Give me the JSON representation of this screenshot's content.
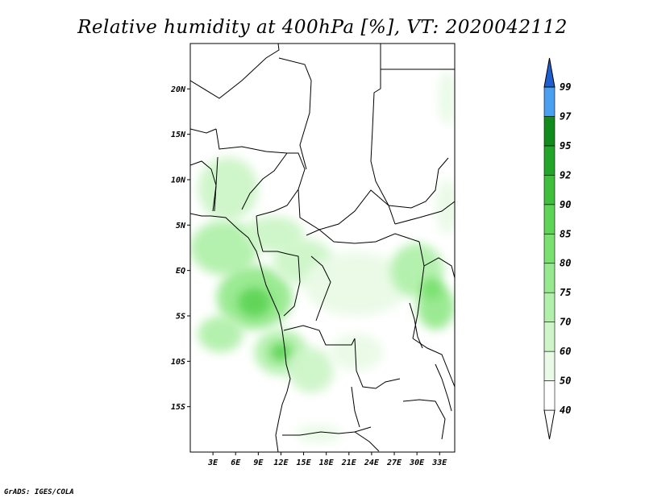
{
  "title": "Relative humidity at 400hPa [%], VT: 2020042112",
  "credit": "GrADS: IGES/COLA",
  "map": {
    "lon_range": [
      0,
      35
    ],
    "lat_range": [
      -20,
      25
    ],
    "lat_ticks": [
      {
        "value": 20,
        "label": "20N"
      },
      {
        "value": 15,
        "label": "15N"
      },
      {
        "value": 10,
        "label": "10N"
      },
      {
        "value": 5,
        "label": "5N"
      },
      {
        "value": 0,
        "label": "EQ"
      },
      {
        "value": -5,
        "label": "5S"
      },
      {
        "value": -10,
        "label": "10S"
      },
      {
        "value": -15,
        "label": "15S"
      }
    ],
    "lon_ticks": [
      {
        "value": 3,
        "label": "3E"
      },
      {
        "value": 6,
        "label": "6E"
      },
      {
        "value": 9,
        "label": "9E"
      },
      {
        "value": 12,
        "label": "12E"
      },
      {
        "value": 15,
        "label": "15E"
      },
      {
        "value": 18,
        "label": "18E"
      },
      {
        "value": 21,
        "label": "21E"
      },
      {
        "value": 24,
        "label": "24E"
      },
      {
        "value": 27,
        "label": "27E"
      },
      {
        "value": 30,
        "label": "30E"
      },
      {
        "value": 33,
        "label": "33E"
      }
    ]
  },
  "colorbar": {
    "levels": [
      {
        "label": "40",
        "color": "#ffffff"
      },
      {
        "label": "50",
        "color": "#e9fae6"
      },
      {
        "label": "60",
        "color": "#cdf5c8"
      },
      {
        "label": "70",
        "color": "#b1f0aa"
      },
      {
        "label": "75",
        "color": "#96e98e"
      },
      {
        "label": "80",
        "color": "#7ae070"
      },
      {
        "label": "85",
        "color": "#5fd456"
      },
      {
        "label": "90",
        "color": "#3fbf3b"
      },
      {
        "label": "92",
        "color": "#23a52a"
      },
      {
        "label": "95",
        "color": "#118c1c"
      },
      {
        "label": "97",
        "color": "#4c9ff0"
      },
      {
        "label": "99",
        "color": "#2a78e0"
      }
    ],
    "top_color": "#1e5fd0",
    "bottom_color": "#ffffff"
  },
  "fields": [
    {
      "lon": 4.5,
      "lat": 2.5,
      "rx": 4.5,
      "ry": 3,
      "level": 3
    },
    {
      "lon": 8.5,
      "lat": -3,
      "rx": 5,
      "ry": 3.5,
      "level": 4
    },
    {
      "lon": 8.5,
      "lat": -3.5,
      "rx": 2.2,
      "ry": 1.6,
      "level": 6
    },
    {
      "lon": 5,
      "lat": 9,
      "rx": 4,
      "ry": 3.5,
      "level": 2
    },
    {
      "lon": 4,
      "lat": -7,
      "rx": 3,
      "ry": 2,
      "level": 3
    },
    {
      "lon": 11,
      "lat": 4,
      "rx": 4,
      "ry": 2,
      "level": 2
    },
    {
      "lon": 15,
      "lat": 1,
      "rx": 4,
      "ry": 2.5,
      "level": 2
    },
    {
      "lon": 22,
      "lat": -1.5,
      "rx": 7,
      "ry": 3.5,
      "level": 1
    },
    {
      "lon": 30,
      "lat": 0,
      "rx": 3.5,
      "ry": 3,
      "level": 3
    },
    {
      "lon": 32.5,
      "lat": -4,
      "rx": 2.5,
      "ry": 2.5,
      "level": 4
    },
    {
      "lon": 32,
      "lat": -2,
      "rx": 1.4,
      "ry": 1.2,
      "level": 5
    },
    {
      "lon": 12,
      "lat": -9,
      "rx": 3.5,
      "ry": 2.5,
      "level": 3
    },
    {
      "lon": 12,
      "lat": -9,
      "rx": 1.4,
      "ry": 1,
      "level": 6
    },
    {
      "lon": 16,
      "lat": -11,
      "rx": 3,
      "ry": 2.5,
      "level": 2
    },
    {
      "lon": 22,
      "lat": -9,
      "rx": 3.5,
      "ry": 2,
      "level": 1
    },
    {
      "lon": 17,
      "lat": -18,
      "rx": 3,
      "ry": 1,
      "level": 1
    },
    {
      "lon": 34,
      "lat": 19,
      "rx": 1.2,
      "ry": 3,
      "level": 1
    },
    {
      "lon": 34,
      "lat": 7,
      "rx": 1.5,
      "ry": 3,
      "level": 1
    }
  ]
}
